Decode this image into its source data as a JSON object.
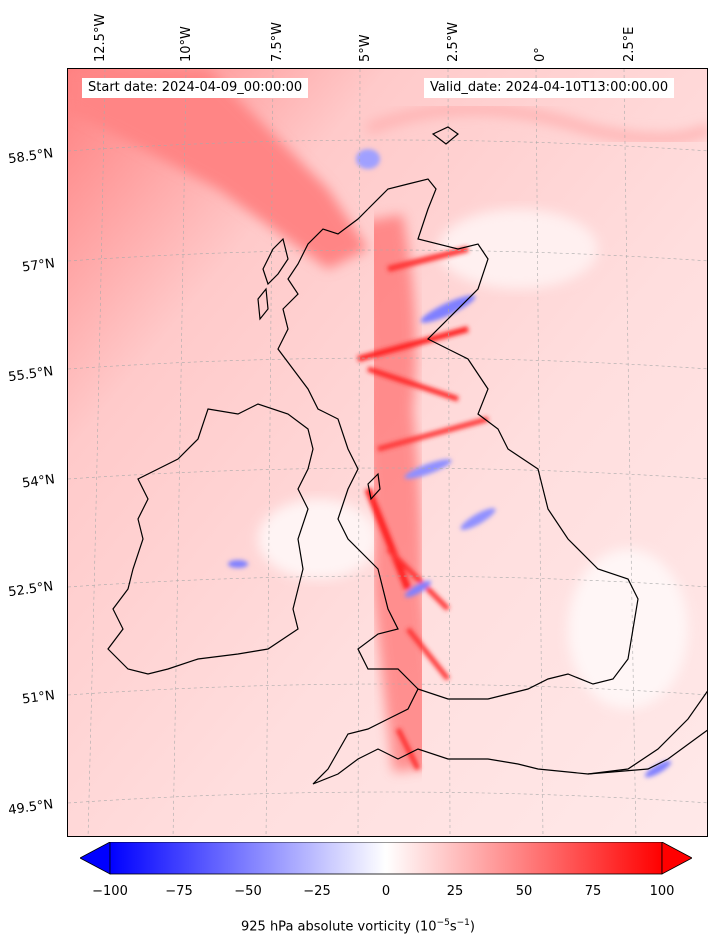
{
  "map": {
    "start_date": "Start date: 2024-04-09_00:00:00",
    "valid_date": "Valid_date: 2024-04-10T13:00:00.00",
    "lon_labels": [
      "12.5°W",
      "10°W",
      "7.5°W",
      "5°W",
      "2.5°W",
      "0°",
      "2.5°E"
    ],
    "lat_labels": [
      "58.5°N",
      "57°N",
      "55.5°N",
      "54°N",
      "52.5°N",
      "51°N",
      "49.5°N"
    ],
    "colormap": {
      "negative": "#0000ff",
      "zero": "#ffffff",
      "positive": "#ff0000"
    }
  },
  "colorbar": {
    "ticks": [
      "−100",
      "−75",
      "−50",
      "−25",
      "0",
      "25",
      "50",
      "75",
      "100"
    ],
    "label": "925 hPa absolute vorticity (10",
    "label_exp1": "−5",
    "label_mid": "s",
    "label_exp2": "−1",
    "label_end": ")"
  }
}
